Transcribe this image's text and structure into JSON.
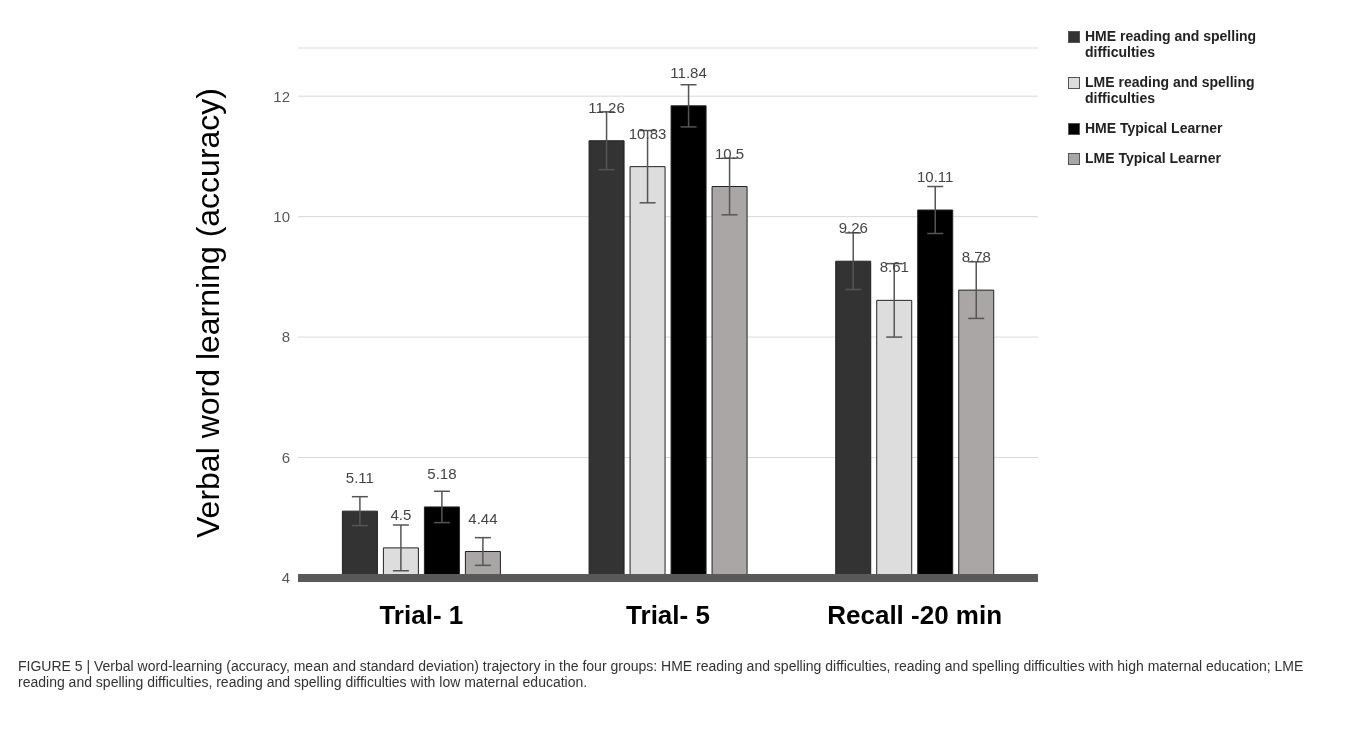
{
  "chart_data": {
    "type": "bar",
    "ylabel": "Verbal word learning (accuracy)",
    "categories": [
      "Trial- 1",
      "Trial- 5",
      "Recall -20 min"
    ],
    "series": [
      {
        "name": "HME reading and spelling difficulties",
        "color": "#333333",
        "values": [
          5.11,
          11.26,
          9.26
        ],
        "errors": [
          0.24,
          0.48,
          0.47
        ]
      },
      {
        "name": "LME reading and spelling difficulties",
        "color": "#dddddd",
        "values": [
          4.5,
          10.83,
          8.61
        ],
        "errors": [
          0.38,
          0.6,
          0.61
        ]
      },
      {
        "name": "HME Typical Learner",
        "color": "#000000",
        "values": [
          5.18,
          11.84,
          10.11
        ],
        "errors": [
          0.26,
          0.35,
          0.39
        ]
      },
      {
        "name": "LME Typical Learner",
        "color": "#aaa6a6",
        "values": [
          4.44,
          10.5,
          8.78
        ],
        "errors": [
          0.23,
          0.47,
          0.47
        ]
      }
    ],
    "ylim": [
      4,
      12.8
    ],
    "yticks": [
      4,
      6,
      8,
      10,
      12
    ],
    "grid": "y",
    "legend": "top right",
    "data_labels": true,
    "annotations": [
      "FIGURE 5 | Verbal word-learning (accuracy, mean and standard deviation) trajectory in the four groups: HME reading and spelling difficulties, reading and spelling difficulties with high maternal education; LME reading and spelling difficulties, reading and spelling difficulties with low maternal education."
    ]
  }
}
